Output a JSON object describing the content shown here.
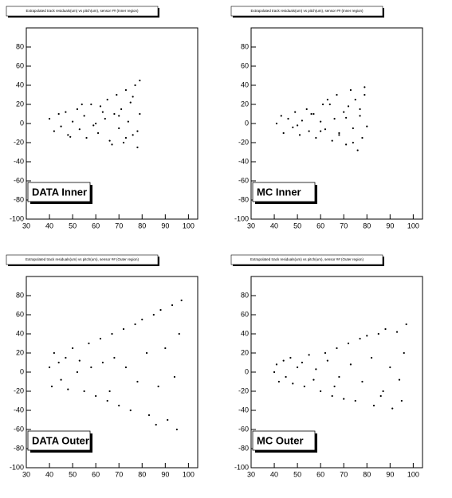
{
  "chart_data": [
    {
      "type": "scatter",
      "title": "Extrapolated track residuals(um) vs pitch(um), sensor ## (Inner region)",
      "label": "DATA Inner",
      "x": [
        40,
        42,
        44,
        45,
        47,
        48,
        50,
        52,
        53,
        55,
        56,
        58,
        60,
        61,
        62,
        64,
        65,
        66,
        68,
        69,
        70,
        71,
        72,
        73,
        74,
        75,
        76,
        77,
        78,
        79,
        79,
        78,
        76,
        73,
        70,
        67,
        63,
        59,
        54,
        49
      ],
      "y": [
        5,
        -8,
        10,
        -3,
        12,
        -12,
        2,
        15,
        -6,
        8,
        -15,
        20,
        0,
        -10,
        18,
        5,
        25,
        -18,
        10,
        30,
        -5,
        15,
        -20,
        35,
        2,
        22,
        -12,
        40,
        -25,
        10,
        45,
        -8,
        28,
        -15,
        8,
        -22,
        12,
        -2,
        20,
        -14
      ],
      "color": "#000000",
      "xlim": [
        30,
        104
      ],
      "ylim": [
        -100,
        100
      ],
      "xticks": [
        30,
        40,
        50,
        60,
        70,
        80,
        90,
        100
      ],
      "yticks": [
        -100,
        -80,
        -60,
        -40,
        -20,
        0,
        20,
        40,
        60,
        80
      ]
    },
    {
      "type": "scatter",
      "title": "Extrapolated track residuals(um) vs pitch(um), sensor ## (Inner region)",
      "label": "MC Inner",
      "x": [
        41,
        43,
        44,
        46,
        48,
        49,
        51,
        52,
        54,
        55,
        57,
        58,
        60,
        61,
        62,
        63,
        65,
        66,
        67,
        68,
        70,
        71,
        72,
        73,
        74,
        75,
        76,
        77,
        78,
        79,
        80,
        79,
        77,
        74,
        71,
        68,
        64,
        60,
        56,
        50
      ],
      "y": [
        0,
        8,
        -10,
        5,
        -4,
        12,
        -12,
        3,
        15,
        -8,
        10,
        -15,
        2,
        20,
        -6,
        25,
        -18,
        5,
        30,
        -10,
        12,
        -22,
        18,
        35,
        -5,
        25,
        -28,
        8,
        -15,
        30,
        -3,
        38,
        15,
        -20,
        6,
        -12,
        20,
        -8,
        10,
        -2
      ],
      "color": "#000000",
      "xlim": [
        30,
        104
      ],
      "ylim": [
        -100,
        100
      ],
      "xticks": [
        30,
        40,
        50,
        60,
        70,
        80,
        90,
        100
      ],
      "yticks": [
        -100,
        -80,
        -60,
        -40,
        -20,
        0,
        20,
        40,
        60,
        80
      ]
    },
    {
      "type": "scatter",
      "title": "Extrapolated track residuals(um) vs pitch(um), sensor ## (Outer region)",
      "label": "DATA Outer",
      "x": [
        40,
        41,
        42,
        44,
        45,
        47,
        48,
        50,
        52,
        53,
        55,
        57,
        58,
        60,
        62,
        63,
        65,
        67,
        68,
        70,
        72,
        73,
        75,
        77,
        78,
        80,
        82,
        83,
        85,
        87,
        88,
        90,
        91,
        93,
        94,
        95,
        96,
        97,
        86,
        66
      ],
      "y": [
        5,
        -15,
        20,
        10,
        -8,
        15,
        -18,
        25,
        0,
        12,
        -20,
        30,
        5,
        -25,
        35,
        10,
        -30,
        40,
        15,
        -35,
        45,
        5,
        -40,
        50,
        -10,
        55,
        20,
        -45,
        60,
        -15,
        65,
        25,
        -50,
        70,
        -5,
        -60,
        40,
        75,
        -55,
        -20
      ],
      "color": "#000000",
      "xlim": [
        30,
        104
      ],
      "ylim": [
        -100,
        100
      ],
      "xticks": [
        30,
        40,
        50,
        60,
        70,
        80,
        90,
        100
      ],
      "yticks": [
        -100,
        -80,
        -60,
        -40,
        -20,
        0,
        20,
        40,
        60,
        80
      ]
    },
    {
      "type": "scatter",
      "title": "Extrapolated track residuals(um) vs pitch(um), sensor ## (Outer region)",
      "label": "MC Outer",
      "x": [
        40,
        41,
        42,
        44,
        45,
        47,
        48,
        50,
        52,
        53,
        55,
        57,
        58,
        60,
        62,
        63,
        65,
        67,
        68,
        70,
        72,
        73,
        75,
        77,
        78,
        80,
        82,
        83,
        85,
        87,
        88,
        90,
        91,
        93,
        94,
        95,
        96,
        97,
        86,
        66
      ],
      "y": [
        0,
        8,
        -10,
        12,
        -5,
        15,
        -12,
        5,
        10,
        -15,
        18,
        -8,
        3,
        -20,
        20,
        12,
        -25,
        25,
        -5,
        -28,
        30,
        8,
        -30,
        35,
        -10,
        38,
        15,
        -35,
        40,
        -20,
        45,
        5,
        -38,
        42,
        -8,
        -30,
        20,
        50,
        -25,
        -15
      ],
      "color": "#000000",
      "xlim": [
        30,
        104
      ],
      "ylim": [
        -100,
        100
      ],
      "xticks": [
        30,
        40,
        50,
        60,
        70,
        80,
        90,
        100
      ],
      "yticks": [
        -100,
        -80,
        -60,
        -40,
        -20,
        0,
        20,
        40,
        60,
        80
      ]
    }
  ]
}
